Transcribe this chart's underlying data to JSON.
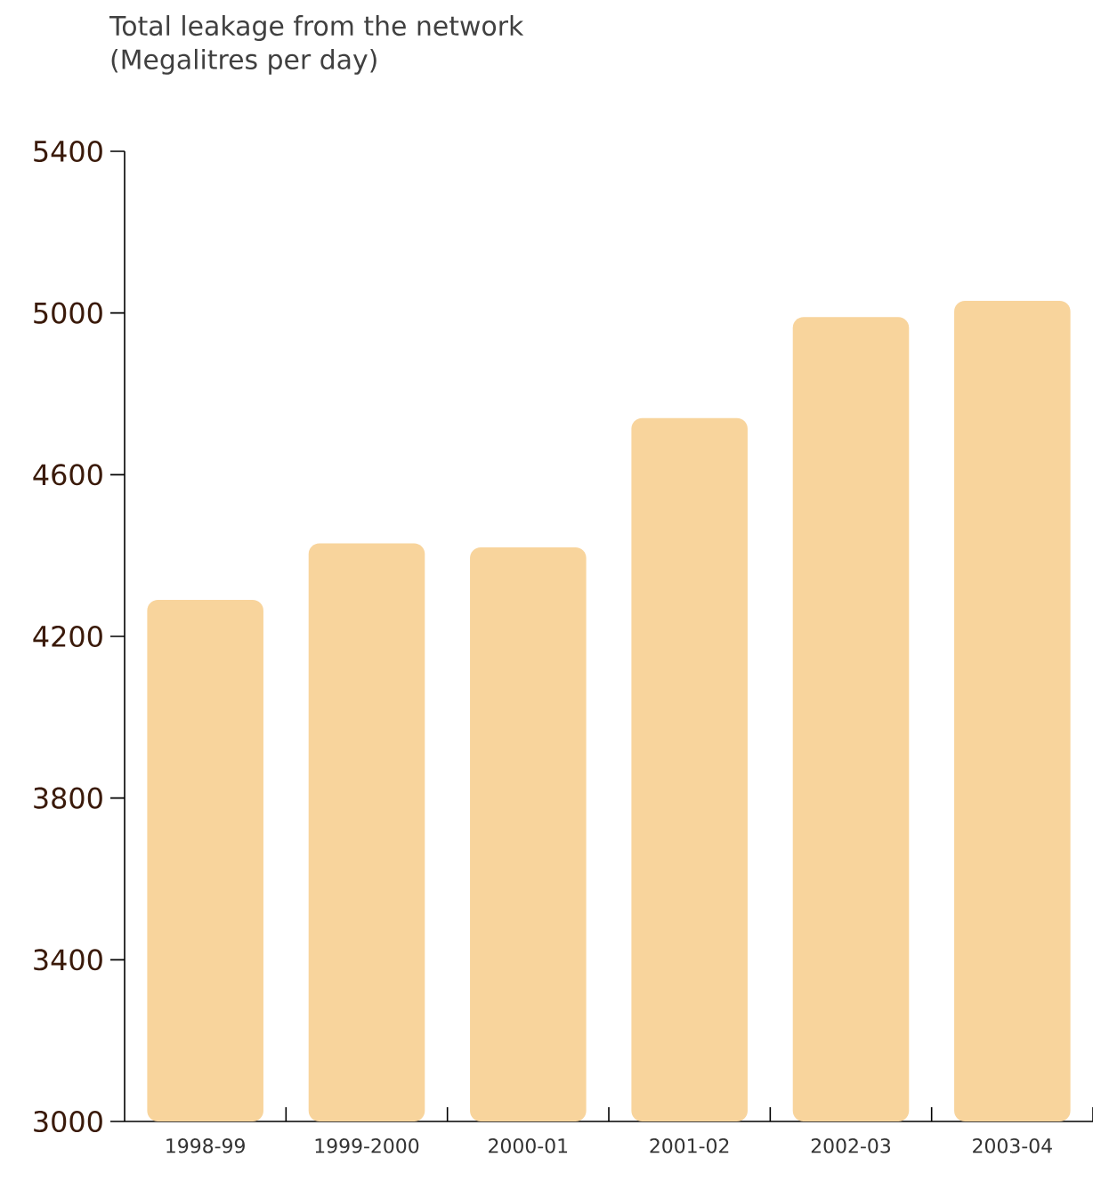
{
  "chart_data": {
    "type": "bar",
    "title": "Total leakage from the network",
    "subtitle": "(Megalitres per day)",
    "categories": [
      "1998-99",
      "1999-2000",
      "2000-01",
      "2001-02",
      "2002-03",
      "2003-04"
    ],
    "values": [
      4290,
      4430,
      4420,
      4740,
      4990,
      5030
    ],
    "color": "#f8d49c",
    "ylim": [
      3000,
      5400
    ],
    "yticks": [
      3000,
      3400,
      3800,
      4200,
      4600,
      5000,
      5400
    ],
    "grid": false
  }
}
